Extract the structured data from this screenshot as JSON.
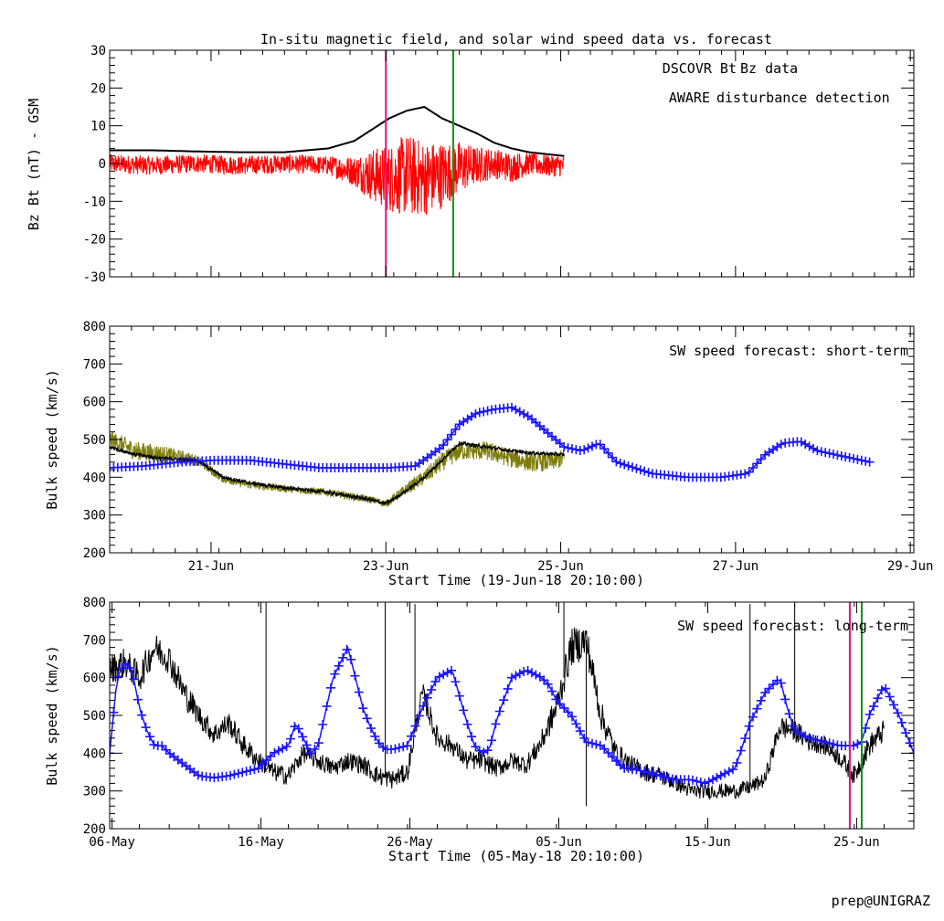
{
  "figure_title": "In-situ magnetic field, and solar wind speed data vs. forecast",
  "credit": "prep@UNIGRAZ",
  "colors": {
    "background": "#ffffff",
    "bt": "#000000",
    "bz": "#ff0000",
    "aware": "#e0118a",
    "disturbance": "#119311",
    "forecast": "#1a14ff",
    "plasma": "#7d7d0c"
  },
  "chart_data": [
    {
      "type": "line",
      "ylabel": "Bz Bt (nT) - GSM",
      "ylim": [
        -30,
        30
      ],
      "yticks": [
        "30",
        "20",
        "10",
        "0",
        "-10",
        "-20",
        "-30"
      ],
      "xlim": [
        0,
        9.2
      ],
      "x_unit": "days since 19-Jun-18 20:10:00",
      "grid": false,
      "legend": {
        "position": "top-right",
        "line1_black": "DSCOVR Bt",
        "line1_red": "Bz data",
        "line2_magenta": "AWARE",
        "line2_green": "disturbance detection"
      },
      "series": [
        {
          "name": "DSCOVR Bt",
          "color": "#000000",
          "x": [
            0,
            0.5,
            1.0,
            1.5,
            2.0,
            2.5,
            2.8,
            3.0,
            3.2,
            3.4,
            3.6,
            3.8,
            3.9,
            4.0,
            4.2,
            4.4,
            4.6,
            4.8,
            5.0,
            5.2
          ],
          "y": [
            3.5,
            3.5,
            3.2,
            3.0,
            3.0,
            4.0,
            6.0,
            9.0,
            12.0,
            14.0,
            15.0,
            12.0,
            11.0,
            10.0,
            8.0,
            5.5,
            4.0,
            3.0,
            2.5,
            2.0
          ]
        },
        {
          "name": "Bz data",
          "color": "#ff0000",
          "x": [
            0,
            0.5,
            1.0,
            1.5,
            2.0,
            2.5,
            2.8,
            3.0,
            3.2,
            3.4,
            3.6,
            3.8,
            3.9,
            4.0,
            4.2,
            4.4,
            4.6,
            4.8,
            5.0,
            5.2
          ],
          "y": [
            0,
            -0.5,
            0,
            -0.5,
            0,
            -0.5,
            -2,
            -3,
            -4,
            -3,
            -4,
            -3,
            -2,
            -1,
            -0.5,
            0,
            -1,
            0,
            -0.5,
            -0.5
          ],
          "noise": [
            2.5,
            2.5,
            2.5,
            2.5,
            2.5,
            2.5,
            4,
            7,
            9,
            11,
            10,
            9,
            8,
            7,
            5,
            4,
            4,
            3,
            3,
            3
          ]
        }
      ],
      "vlines": [
        {
          "x": 3.16,
          "color": "#e0118a"
        },
        {
          "x": 3.93,
          "color": "#119311"
        }
      ]
    },
    {
      "type": "line",
      "ylabel": "Bulk speed (km/s)",
      "ylim": [
        200,
        800
      ],
      "yticks": [
        "800",
        "700",
        "600",
        "500",
        "400",
        "300",
        "200"
      ],
      "xlim": [
        0,
        9.2
      ],
      "x_tick_values": [
        1.16,
        3.16,
        5.16,
        7.16,
        9.16
      ],
      "x_tick_labels": [
        "21-Jun",
        "23-Jun",
        "25-Jun",
        "27-Jun",
        "29-Jun"
      ],
      "xlabel": "Start Time (19-Jun-18 20:10:00)",
      "annotation": "SW speed forecast: short-term",
      "grid": false,
      "series": [
        {
          "name": "plasma",
          "color": "#7d7d0c",
          "x": [
            0,
            0.3,
            0.6,
            1.0,
            1.3,
            1.6,
            2.0,
            2.5,
            3.0,
            3.16,
            3.4,
            3.6,
            3.8,
            4.0,
            4.3,
            4.6,
            4.8,
            5.0,
            5.2
          ],
          "y": [
            500,
            470,
            460,
            445,
            395,
            380,
            370,
            360,
            340,
            330,
            370,
            400,
            440,
            470,
            470,
            450,
            440,
            440,
            450
          ],
          "noise": [
            25,
            25,
            25,
            15,
            10,
            10,
            10,
            10,
            10,
            10,
            15,
            20,
            25,
            25,
            25,
            25,
            25,
            25,
            25
          ]
        },
        {
          "name": "black",
          "color": "#000000",
          "x": [
            0,
            0.3,
            0.6,
            1.0,
            1.3,
            1.6,
            2.0,
            2.5,
            3.0,
            3.16,
            3.4,
            3.6,
            3.8,
            4.0,
            4.3,
            4.6,
            4.8,
            5.0,
            5.2
          ],
          "y": [
            480,
            460,
            450,
            445,
            400,
            385,
            372,
            360,
            340,
            330,
            365,
            400,
            445,
            490,
            480,
            470,
            465,
            462,
            460
          ],
          "noise": [
            5,
            5,
            5,
            5,
            5,
            5,
            5,
            5,
            5,
            5,
            5,
            5,
            5,
            5,
            5,
            5,
            5,
            5,
            5
          ]
        },
        {
          "name": "forecast",
          "color": "#1a14ff",
          "marker": "plus",
          "x": [
            0,
            0.4,
            0.8,
            1.2,
            1.6,
            2.0,
            2.4,
            2.8,
            3.2,
            3.5,
            3.8,
            4.0,
            4.2,
            4.4,
            4.6,
            4.8,
            5.0,
            5.2,
            5.4,
            5.6,
            5.8,
            6.2,
            6.6,
            7.0,
            7.3,
            7.5,
            7.7,
            7.9,
            8.1,
            8.3,
            8.5,
            8.7
          ],
          "y": [
            425,
            430,
            440,
            445,
            445,
            435,
            425,
            425,
            425,
            430,
            480,
            540,
            570,
            580,
            585,
            560,
            520,
            480,
            470,
            490,
            440,
            410,
            400,
            400,
            410,
            460,
            490,
            495,
            470,
            460,
            450,
            440
          ]
        }
      ]
    },
    {
      "type": "line",
      "ylabel": "Bulk speed (km/s)",
      "ylim": [
        200,
        800
      ],
      "yticks": [
        "800",
        "700",
        "600",
        "500",
        "400",
        "300",
        "200"
      ],
      "xlim": [
        0,
        54
      ],
      "x_tick_values": [
        0.16,
        10.16,
        20.16,
        30.16,
        40.16,
        50.16
      ],
      "x_tick_labels": [
        "06-May",
        "16-May",
        "26-May",
        "05-Jun",
        "15-Jun",
        "25-Jun"
      ],
      "xlabel": "Start Time (05-May-18 20:10:00)",
      "annotation": "SW speed forecast: long-term",
      "grid": false,
      "series": [
        {
          "name": "black",
          "color": "#000000",
          "x": [
            0,
            1,
            2,
            3,
            4,
            5,
            6,
            7,
            8,
            9,
            10,
            11,
            12,
            13,
            14,
            15,
            16,
            17,
            18,
            19,
            20,
            21,
            22,
            23,
            24,
            25,
            26,
            27,
            28,
            29,
            30,
            31,
            32,
            33,
            34,
            35,
            36,
            37,
            38,
            39,
            40,
            41,
            42,
            43,
            44,
            45,
            46,
            47,
            48,
            49,
            50,
            51,
            52
          ],
          "y": [
            620,
            640,
            600,
            680,
            650,
            560,
            500,
            450,
            480,
            420,
            380,
            350,
            340,
            400,
            380,
            360,
            380,
            370,
            340,
            330,
            350,
            560,
            440,
            420,
            380,
            380,
            360,
            380,
            370,
            430,
            520,
            680,
            700,
            500,
            400,
            370,
            350,
            340,
            320,
            300,
            300,
            300,
            300,
            310,
            330,
            470,
            460,
            430,
            420,
            390,
            340,
            420,
            460
          ],
          "noise": [
            40,
            40,
            40,
            40,
            40,
            40,
            30,
            30,
            30,
            30,
            25,
            25,
            25,
            25,
            25,
            25,
            25,
            25,
            25,
            25,
            25,
            30,
            30,
            25,
            25,
            25,
            25,
            25,
            25,
            30,
            40,
            50,
            50,
            40,
            30,
            25,
            25,
            25,
            20,
            20,
            20,
            20,
            20,
            20,
            20,
            30,
            30,
            25,
            25,
            25,
            25,
            30,
            30
          ],
          "spikes": [
            [
              20.5,
              795
            ],
            [
              30.5,
              800
            ],
            [
              32,
              260
            ],
            [
              43,
              795
            ],
            [
              46,
              795
            ],
            [
              10.5,
              800
            ],
            [
              18.5,
              800
            ]
          ]
        },
        {
          "name": "forecast",
          "color": "#1a14ff",
          "marker": "plus",
          "x": [
            0,
            0.5,
            1.0,
            1.5,
            2.0,
            2.5,
            3.0,
            3.5,
            4.0,
            5,
            6,
            7,
            8,
            9,
            10,
            11,
            12,
            12.5,
            13,
            13.5,
            14,
            15,
            16,
            17,
            17.5,
            18,
            18.5,
            19,
            20,
            21,
            22,
            23,
            24,
            24.5,
            25,
            25.5,
            26,
            27,
            28,
            29,
            29.5,
            30,
            31,
            32,
            33,
            34,
            34.5,
            35,
            36,
            37,
            38,
            39,
            40,
            41,
            42,
            43,
            44,
            45,
            45.5,
            46,
            47,
            48,
            49,
            50,
            50.5,
            51,
            52,
            53,
            54,
            55,
            56
          ],
          "y": [
            400,
            600,
            640,
            620,
            520,
            460,
            420,
            420,
            400,
            370,
            340,
            335,
            340,
            350,
            360,
            400,
            420,
            480,
            440,
            400,
            420,
            600,
            680,
            520,
            470,
            430,
            410,
            410,
            420,
            520,
            600,
            620,
            480,
            420,
            400,
            410,
            490,
            600,
            620,
            600,
            580,
            540,
            500,
            430,
            420,
            380,
            360,
            360,
            350,
            340,
            330,
            330,
            320,
            340,
            360,
            480,
            560,
            600,
            520,
            460,
            440,
            430,
            420,
            420,
            430,
            500,
            580,
            500,
            400,
            480,
            440
          ]
        }
      ],
      "vlines": [
        {
          "x": 49.7,
          "color": "#e0118a"
        },
        {
          "x": 50.5,
          "color": "#119311"
        }
      ]
    }
  ]
}
